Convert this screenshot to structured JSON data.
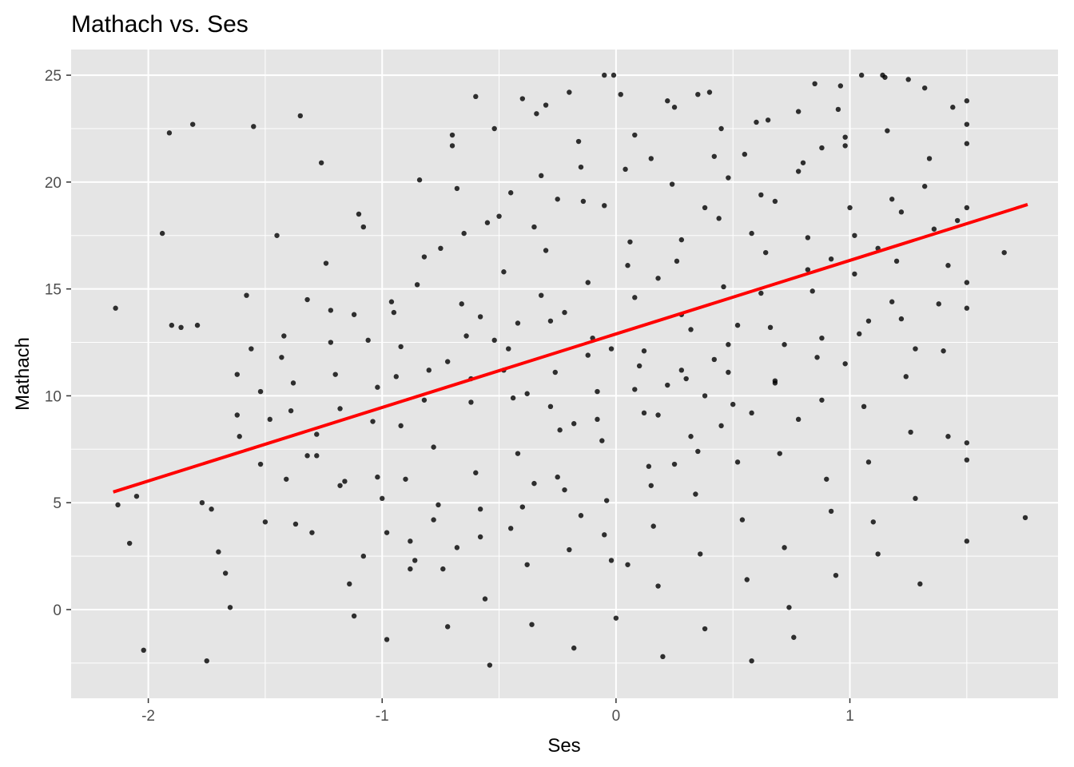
{
  "chart_data": {
    "type": "scatter",
    "title": "Mathach vs. Ses",
    "xlabel": "Ses",
    "ylabel": "Mathach",
    "xlim": [
      -2.33,
      1.89
    ],
    "ylim": [
      -4.15,
      26.2
    ],
    "x_ticks": [
      -2,
      -1,
      0,
      1
    ],
    "x_tick_labels": [
      "-2",
      "-1",
      "0",
      "1"
    ],
    "y_ticks": [
      0,
      5,
      10,
      15,
      20,
      25
    ],
    "y_tick_labels": [
      "0",
      "5",
      "10",
      "15",
      "20",
      "25"
    ],
    "grid": true,
    "legend": "none",
    "point_color": "#000000",
    "panel_color": "#e5e5e5",
    "grid_color": "#ffffff",
    "fit_line": {
      "color": "#ff0000",
      "x": [
        -2.15,
        1.76
      ],
      "y": [
        5.5,
        18.95
      ]
    },
    "points": [
      [
        -2.14,
        14.1
      ],
      [
        -2.13,
        4.9
      ],
      [
        -2.05,
        5.3
      ],
      [
        -2.08,
        3.1
      ],
      [
        -2.02,
        -1.9
      ],
      [
        -1.94,
        17.6
      ],
      [
        -1.91,
        22.3
      ],
      [
        -1.9,
        13.3
      ],
      [
        -1.86,
        13.2
      ],
      [
        -1.81,
        22.7
      ],
      [
        -1.79,
        13.3
      ],
      [
        -1.77,
        5
      ],
      [
        -1.75,
        -2.4
      ],
      [
        -1.73,
        4.7
      ],
      [
        -1.7,
        2.7
      ],
      [
        -1.67,
        1.7
      ],
      [
        -1.65,
        0.1
      ],
      [
        -1.62,
        9.1
      ],
      [
        -1.61,
        8.1
      ],
      [
        -1.58,
        14.7
      ],
      [
        -1.56,
        12.2
      ],
      [
        -1.55,
        22.6
      ],
      [
        -1.52,
        6.8
      ],
      [
        -1.5,
        4.1
      ],
      [
        -1.45,
        17.5
      ],
      [
        -1.43,
        11.8
      ],
      [
        -1.41,
        6.1
      ],
      [
        -1.39,
        9.3
      ],
      [
        -1.37,
        4
      ],
      [
        -1.35,
        23.1
      ],
      [
        -1.32,
        7.2
      ],
      [
        -1.3,
        3.6
      ],
      [
        -1.28,
        7.2
      ],
      [
        -1.26,
        20.9
      ],
      [
        -1.24,
        16.2
      ],
      [
        -1.22,
        14
      ],
      [
        -1.2,
        11
      ],
      [
        -1.18,
        9.4
      ],
      [
        -1.16,
        6
      ],
      [
        -1.14,
        1.2
      ],
      [
        -1.12,
        -0.3
      ],
      [
        -1.1,
        18.5
      ],
      [
        -1.08,
        17.9
      ],
      [
        -1.06,
        12.6
      ],
      [
        -1.04,
        8.8
      ],
      [
        -1.02,
        6.2
      ],
      [
        -1.0,
        5.2
      ],
      [
        -0.98,
        -1.4
      ],
      [
        -0.96,
        14.4
      ],
      [
        -0.94,
        10.9
      ],
      [
        -0.92,
        8.6
      ],
      [
        -0.9,
        6.1
      ],
      [
        -0.88,
        3.2
      ],
      [
        -0.86,
        2.3
      ],
      [
        -0.84,
        20.1
      ],
      [
        -0.82,
        16.5
      ],
      [
        -0.8,
        11.2
      ],
      [
        -0.78,
        7.6
      ],
      [
        -0.76,
        4.9
      ],
      [
        -0.74,
        1.9
      ],
      [
        -0.72,
        -0.8
      ],
      [
        -0.7,
        21.7
      ],
      [
        -0.68,
        19.7
      ],
      [
        -0.66,
        14.3
      ],
      [
        -0.64,
        12.8
      ],
      [
        -0.62,
        9.7
      ],
      [
        -0.6,
        6.4
      ],
      [
        -0.58,
        3.4
      ],
      [
        -0.56,
        0.5
      ],
      [
        -0.54,
        -2.6
      ],
      [
        -0.52,
        22.5
      ],
      [
        -0.5,
        18.4
      ],
      [
        -0.48,
        15.8
      ],
      [
        -0.46,
        12.2
      ],
      [
        -0.44,
        9.9
      ],
      [
        -0.42,
        7.3
      ],
      [
        -0.4,
        4.8
      ],
      [
        -0.38,
        2.1
      ],
      [
        -0.36,
        -0.7
      ],
      [
        -0.34,
        23.2
      ],
      [
        -0.32,
        20.3
      ],
      [
        -0.3,
        16.8
      ],
      [
        -0.28,
        13.5
      ],
      [
        -0.26,
        11.1
      ],
      [
        -0.24,
        8.4
      ],
      [
        -0.22,
        5.6
      ],
      [
        -0.2,
        2.8
      ],
      [
        -0.18,
        -1.8
      ],
      [
        -0.16,
        21.9
      ],
      [
        -0.14,
        19.1
      ],
      [
        -0.12,
        15.3
      ],
      [
        -0.1,
        12.7
      ],
      [
        -0.08,
        10.2
      ],
      [
        -0.06,
        7.9
      ],
      [
        -0.04,
        5.1
      ],
      [
        -0.02,
        2.3
      ],
      [
        0.0,
        -0.4
      ],
      [
        0.02,
        24.1
      ],
      [
        0.04,
        20.6
      ],
      [
        0.06,
        17.2
      ],
      [
        0.08,
        14.6
      ],
      [
        0.1,
        11.4
      ],
      [
        0.12,
        9.2
      ],
      [
        0.14,
        6.7
      ],
      [
        0.16,
        3.9
      ],
      [
        0.18,
        1.1
      ],
      [
        0.2,
        -2.2
      ],
      [
        0.22,
        23.8
      ],
      [
        0.24,
        19.9
      ],
      [
        0.26,
        16.3
      ],
      [
        0.28,
        13.8
      ],
      [
        0.3,
        10.8
      ],
      [
        0.32,
        8.1
      ],
      [
        0.34,
        5.4
      ],
      [
        0.36,
        2.6
      ],
      [
        0.38,
        -0.9
      ],
      [
        0.4,
        24.2
      ],
      [
        0.42,
        21.2
      ],
      [
        0.44,
        18.3
      ],
      [
        0.46,
        15.1
      ],
      [
        0.48,
        12.4
      ],
      [
        0.5,
        9.6
      ],
      [
        0.52,
        6.9
      ],
      [
        0.54,
        4.2
      ],
      [
        0.56,
        1.4
      ],
      [
        0.58,
        -2.4
      ],
      [
        0.6,
        22.8
      ],
      [
        0.62,
        19.4
      ],
      [
        0.64,
        16.7
      ],
      [
        0.66,
        13.2
      ],
      [
        0.68,
        10.6
      ],
      [
        0.7,
        7.3
      ],
      [
        0.72,
        2.9
      ],
      [
        0.74,
        0.1
      ],
      [
        0.76,
        -1.3
      ],
      [
        0.78,
        23.3
      ],
      [
        0.8,
        20.9
      ],
      [
        0.82,
        17.4
      ],
      [
        0.84,
        14.9
      ],
      [
        0.86,
        11.8
      ],
      [
        0.88,
        9.8
      ],
      [
        0.9,
        6.1
      ],
      [
        0.92,
        4.6
      ],
      [
        0.94,
        1.6
      ],
      [
        0.96,
        24.5
      ],
      [
        0.98,
        21.7
      ],
      [
        1.0,
        18.8
      ],
      [
        1.02,
        15.7
      ],
      [
        1.04,
        12.9
      ],
      [
        1.06,
        9.5
      ],
      [
        1.08,
        6.9
      ],
      [
        1.1,
        4.1
      ],
      [
        1.12,
        2.6
      ],
      [
        1.14,
        25
      ],
      [
        1.16,
        22.4
      ],
      [
        1.18,
        19.2
      ],
      [
        1.2,
        16.3
      ],
      [
        1.22,
        13.6
      ],
      [
        1.24,
        10.9
      ],
      [
        1.26,
        8.3
      ],
      [
        1.28,
        5.2
      ],
      [
        1.3,
        1.2
      ],
      [
        1.32,
        24.4
      ],
      [
        1.34,
        21.1
      ],
      [
        1.36,
        17.8
      ],
      [
        1.38,
        14.3
      ],
      [
        1.4,
        12.1
      ],
      [
        1.42,
        8.1
      ],
      [
        1.44,
        23.5
      ],
      [
        1.46,
        18.2
      ],
      [
        1.5,
        23.8
      ],
      [
        1.5,
        22.7
      ],
      [
        1.5,
        21.8
      ],
      [
        1.5,
        18.8
      ],
      [
        1.5,
        15.3
      ],
      [
        1.5,
        14.1
      ],
      [
        1.5,
        7.8
      ],
      [
        1.5,
        7.0
      ],
      [
        1.5,
        3.2
      ],
      [
        1.66,
        16.7
      ],
      [
        1.75,
        4.3
      ],
      [
        -0.05,
        25
      ],
      [
        -0.01,
        25
      ],
      [
        0.08,
        22.2
      ],
      [
        0.15,
        21.1
      ],
      [
        0.25,
        23.5
      ],
      [
        0.35,
        24.1
      ],
      [
        0.45,
        22.5
      ],
      [
        0.55,
        21.3
      ],
      [
        0.65,
        22.9
      ],
      [
        1.05,
        25
      ],
      [
        1.15,
        24.9
      ],
      [
        1.25,
        24.8
      ],
      [
        0.85,
        24.6
      ],
      [
        0.95,
        23.4
      ],
      [
        -0.2,
        24.2
      ],
      [
        -0.3,
        23.6
      ],
      [
        -0.4,
        23.9
      ],
      [
        -0.6,
        24
      ],
      [
        -0.7,
        22.2
      ],
      [
        -0.58,
        13.7
      ],
      [
        -0.48,
        11.2
      ],
      [
        -0.38,
        10.1
      ],
      [
        -0.28,
        9.5
      ],
      [
        -0.18,
        8.7
      ],
      [
        -0.08,
        8.9
      ],
      [
        0.12,
        12.1
      ],
      [
        0.22,
        10.5
      ],
      [
        0.32,
        13.1
      ],
      [
        0.42,
        11.7
      ],
      [
        0.52,
        13.3
      ],
      [
        0.62,
        14.8
      ],
      [
        0.72,
        12.4
      ],
      [
        0.82,
        15.9
      ],
      [
        0.92,
        16.4
      ],
      [
        1.02,
        17.5
      ],
      [
        1.12,
        16.9
      ],
      [
        1.22,
        18.6
      ],
      [
        1.32,
        19.8
      ],
      [
        1.42,
        16.1
      ],
      [
        -1.48,
        8.9
      ],
      [
        -1.38,
        10.6
      ],
      [
        -1.28,
        8.2
      ],
      [
        -1.18,
        5.8
      ],
      [
        -1.08,
        2.5
      ],
      [
        -0.98,
        3.6
      ],
      [
        -0.88,
        1.9
      ],
      [
        -0.78,
        4.2
      ],
      [
        -0.68,
        2.9
      ],
      [
        -0.58,
        4.7
      ],
      [
        -0.45,
        3.8
      ],
      [
        -0.35,
        5.9
      ],
      [
        -0.25,
        6.2
      ],
      [
        -0.15,
        4.4
      ],
      [
        -0.05,
        3.5
      ],
      [
        0.05,
        2.1
      ],
      [
        0.15,
        5.8
      ],
      [
        0.25,
        6.8
      ],
      [
        0.35,
        7.4
      ],
      [
        0.45,
        8.6
      ],
      [
        -0.95,
        13.9
      ],
      [
        -0.85,
        15.2
      ],
      [
        -0.75,
        16.9
      ],
      [
        -0.65,
        17.6
      ],
      [
        -0.55,
        18.1
      ],
      [
        -0.45,
        19.5
      ],
      [
        -0.35,
        17.9
      ],
      [
        -0.25,
        19.2
      ],
      [
        -0.15,
        20.7
      ],
      [
        -0.05,
        18.9
      ],
      [
        0.05,
        16.1
      ],
      [
        0.18,
        15.5
      ],
      [
        0.28,
        17.3
      ],
      [
        0.38,
        18.8
      ],
      [
        0.48,
        20.2
      ],
      [
        0.58,
        17.6
      ],
      [
        0.68,
        19.1
      ],
      [
        0.78,
        20.5
      ],
      [
        0.88,
        21.6
      ],
      [
        0.98,
        22.1
      ],
      [
        -1.62,
        11
      ],
      [
        -1.52,
        10.2
      ],
      [
        -1.42,
        12.8
      ],
      [
        -1.32,
        14.5
      ],
      [
        -1.22,
        12.5
      ],
      [
        -1.12,
        13.8
      ],
      [
        -1.02,
        10.4
      ],
      [
        -0.92,
        12.3
      ],
      [
        -0.82,
        9.8
      ],
      [
        -0.72,
        11.6
      ],
      [
        -0.62,
        10.8
      ],
      [
        -0.52,
        12.6
      ],
      [
        -0.42,
        13.4
      ],
      [
        -0.32,
        14.7
      ],
      [
        -0.22,
        13.9
      ],
      [
        -0.12,
        11.9
      ],
      [
        -0.02,
        12.2
      ],
      [
        0.08,
        10.3
      ],
      [
        0.18,
        9.1
      ],
      [
        0.28,
        11.2
      ],
      [
        0.38,
        10
      ],
      [
        0.48,
        11.1
      ],
      [
        0.58,
        9.2
      ],
      [
        0.68,
        10.7
      ],
      [
        0.78,
        8.9
      ],
      [
        0.88,
        12.7
      ],
      [
        0.98,
        11.5
      ],
      [
        1.08,
        13.5
      ],
      [
        1.18,
        14.4
      ],
      [
        1.28,
        12.2
      ]
    ]
  }
}
